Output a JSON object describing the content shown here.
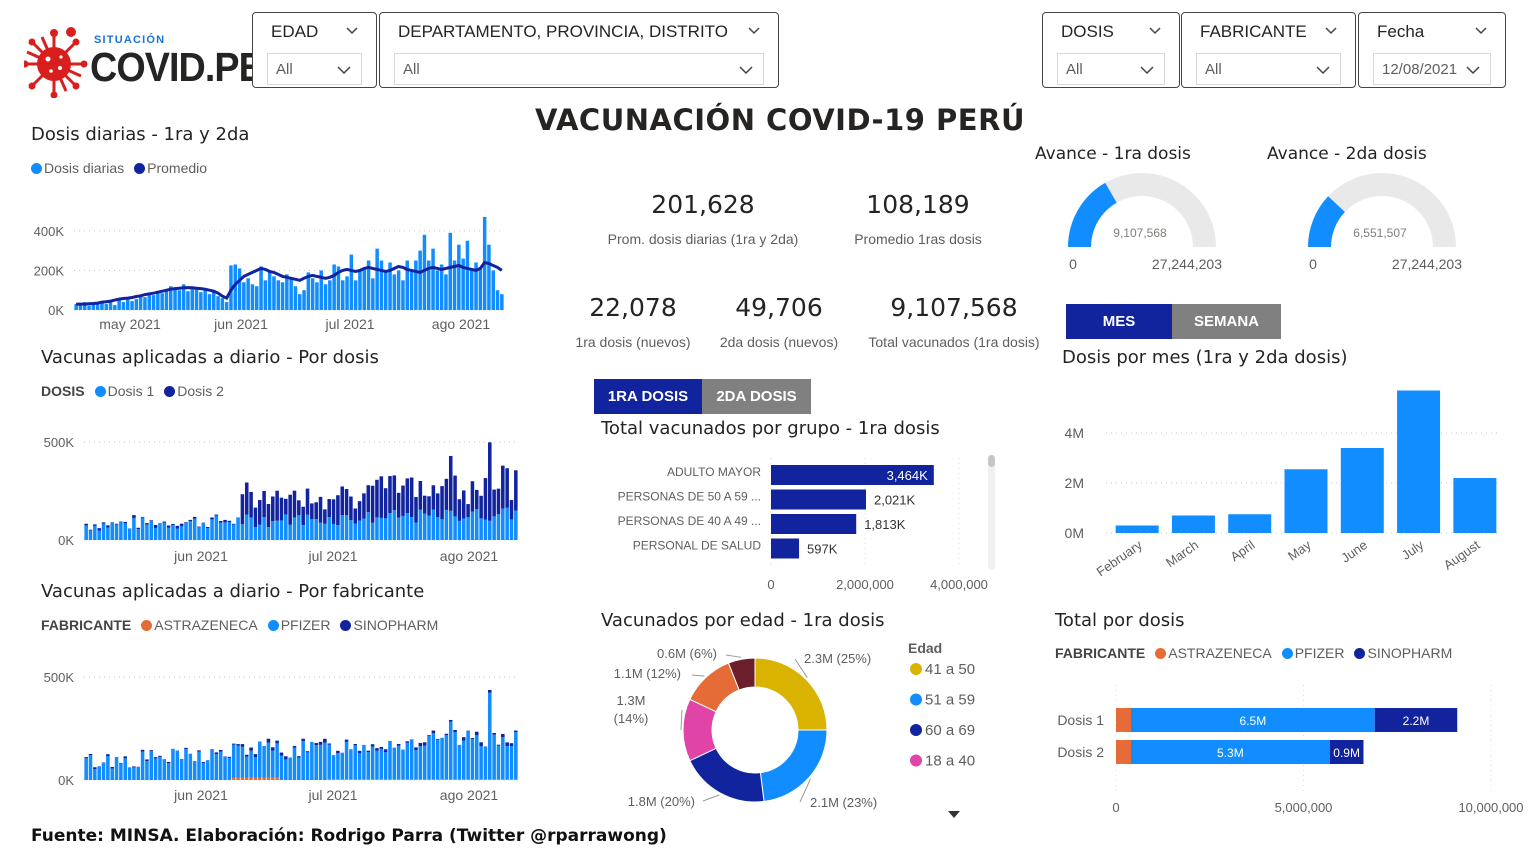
{
  "logo": {
    "subtitle": "SITUACIÓN",
    "name": "COVID.PE"
  },
  "slicers": {
    "edad": {
      "title": "EDAD",
      "value": "All"
    },
    "departamento": {
      "title": "DEPARTAMENTO, PROVINCIA, DISTRITO",
      "value": "All"
    },
    "dosis": {
      "title": "DOSIS",
      "value": "All"
    },
    "fabricante": {
      "title": "FABRICANTE",
      "value": "All"
    },
    "fecha": {
      "title": "Fecha",
      "value": "12/08/2021"
    }
  },
  "main_title": "VACUNACIÓN COVID-19 PERÚ",
  "kpis": {
    "prom_diarias": {
      "value": "201,628",
      "label": "Prom. dosis diarias (1ra y 2da)"
    },
    "prom_1ras": {
      "value": "108,189",
      "label": "Promedio 1ras dosis"
    },
    "primera_nuevos": {
      "value": "22,078",
      "label": "1ra dosis (nuevos)"
    },
    "segunda_nuevos": {
      "value": "49,706",
      "label": "2da dosis (nuevos)"
    },
    "total_vacunados": {
      "value": "9,107,568",
      "label": "Total vacunados (1ra dosis)"
    }
  },
  "toggles": {
    "mes": "MES",
    "semana": "SEMANA",
    "primera": "1RA DOSIS",
    "segunda": "2DA DOSIS"
  },
  "colors": {
    "light_blue": "#118DFF",
    "dark_blue": "#12239E",
    "orange": "#E66C37",
    "gold": "#D9B300",
    "magenta": "#E044A7",
    "maroon": "#6B007B",
    "gray": "#808080"
  },
  "footer": "Fuente: MINSA. Elaboración: Rodrigo Parra (Twitter @rparrawong)",
  "chart_data": [
    {
      "id": "dosis_diarias",
      "type": "bar",
      "title": "Dosis diarias - 1ra y 2da",
      "series_names": [
        "Dosis diarias",
        "Promedio"
      ],
      "y_ticks": [
        "400K",
        "200K",
        "0K"
      ],
      "x_ticks": [
        "may 2021",
        "jun 2021",
        "jul 2021",
        "ago 2021"
      ],
      "ylim": [
        0,
        480000
      ],
      "values": [
        30000,
        25000,
        40000,
        22000,
        35000,
        28000,
        45000,
        30000,
        38000,
        25000,
        50000,
        40000,
        60000,
        45000,
        55000,
        70000,
        65000,
        80000,
        75000,
        90000,
        85000,
        100000,
        120000,
        110000,
        100000,
        130000,
        95000,
        115000,
        110000,
        90000,
        100000,
        80000,
        95000,
        70000,
        60000,
        40000,
        225000,
        230000,
        210000,
        140000,
        160000,
        130000,
        120000,
        220000,
        150000,
        200000,
        170000,
        150000,
        140000,
        180000,
        160000,
        120000,
        80000,
        100000,
        190000,
        160000,
        140000,
        200000,
        130000,
        150000,
        230000,
        220000,
        150000,
        170000,
        280000,
        150000,
        200000,
        210000,
        250000,
        160000,
        310000,
        250000,
        200000,
        240000,
        180000,
        200000,
        150000,
        250000,
        200000,
        250000,
        300000,
        380000,
        250000,
        310000,
        200000,
        230000,
        180000,
        390000,
        250000,
        330000,
        260000,
        350000,
        210000,
        240000,
        210000,
        470000,
        330000,
        200000,
        100000,
        80000
      ],
      "avg": [
        30000,
        30000,
        30000,
        32000,
        33000,
        35000,
        40000,
        42000,
        45000,
        50000,
        55000,
        58000,
        60000,
        63000,
        68000,
        72000,
        78000,
        82000,
        85000,
        90000,
        95000,
        100000,
        105000,
        108000,
        110000,
        112000,
        113000,
        112000,
        110000,
        108000,
        105000,
        100000,
        95000,
        85000,
        70000,
        60000,
        100000,
        130000,
        150000,
        170000,
        180000,
        190000,
        200000,
        210000,
        205000,
        195000,
        190000,
        180000,
        170000,
        165000,
        160000,
        155000,
        150000,
        160000,
        170000,
        175000,
        170000,
        165000,
        160000,
        165000,
        175000,
        190000,
        200000,
        205000,
        200000,
        195000,
        200000,
        210000,
        215000,
        210000,
        205000,
        200000,
        195000,
        200000,
        210000,
        220000,
        215000,
        205000,
        200000,
        195000,
        190000,
        200000,
        210000,
        215000,
        210000,
        205000,
        210000,
        215000,
        220000,
        225000,
        215000,
        210000,
        205000,
        200000,
        210000,
        240000,
        235000,
        225000,
        215000,
        200000
      ]
    },
    {
      "id": "por_dosis",
      "type": "bar",
      "title": "Vacunas aplicadas a diario - Por dosis",
      "legend_label": "DOSIS",
      "series_names": [
        "Dosis 1",
        "Dosis 2"
      ],
      "y_ticks": [
        "500K",
        "0K"
      ],
      "x_ticks": [
        "jun 2021",
        "jul 2021",
        "ago 2021"
      ],
      "ylim": [
        0,
        520000
      ]
    },
    {
      "id": "por_fabricante",
      "type": "bar",
      "title": "Vacunas aplicadas a diario - Por fabricante",
      "legend_label": "FABRICANTE",
      "series_names": [
        "ASTRAZENECA",
        "PFIZER",
        "SINOPHARM"
      ],
      "y_ticks": [
        "500K",
        "0K"
      ],
      "x_ticks": [
        "jun 2021",
        "jul 2021",
        "ago 2021"
      ],
      "ylim": [
        0,
        520000
      ]
    },
    {
      "id": "gauge_1ra",
      "type": "gauge",
      "title": "Avance - 1ra dosis",
      "value": 9107568,
      "value_label": "9,107,568",
      "min_label": "0",
      "max": 27244203,
      "max_label": "27,244,203"
    },
    {
      "id": "gauge_2da",
      "type": "gauge",
      "title": "Avance - 2da dosis",
      "value": 6551507,
      "value_label": "6,551,507",
      "min_label": "0",
      "max": 27244203,
      "max_label": "27,244,203"
    },
    {
      "id": "por_grupo",
      "type": "bar",
      "orientation": "horizontal",
      "title": "Total vacunados por grupo - 1ra dosis",
      "categories": [
        "ADULTO MAYOR",
        "PERSONAS DE 50 A 59 ...",
        "PERSONAS DE 40 A 49 ...",
        "PERSONAL DE SALUD"
      ],
      "values": [
        3464000,
        2021000,
        1813000,
        597000
      ],
      "data_labels": [
        "3,464K",
        "2,021K",
        "1,813K",
        "597K"
      ],
      "x_ticks": [
        "0",
        "2,000,000",
        "4,000,000"
      ],
      "xlim": [
        0,
        4000000
      ]
    },
    {
      "id": "por_mes",
      "type": "bar",
      "title": "Dosis por mes (1ra y 2da dosis)",
      "categories": [
        "February",
        "March",
        "April",
        "May",
        "June",
        "July",
        "August"
      ],
      "values": [
        300000,
        700000,
        750000,
        2550000,
        3400000,
        5700000,
        2200000
      ],
      "y_ticks": [
        "4M",
        "2M",
        "0M"
      ],
      "ylim": [
        0,
        6000000
      ]
    },
    {
      "id": "por_edad",
      "type": "pie",
      "title": "Vacunados por edad - 1ra dosis",
      "legend_title": "Edad",
      "legend": [
        "41 a 50",
        "51 a 59",
        "60 a 69",
        "18 a 40"
      ],
      "slices": [
        {
          "value": 25,
          "label": "2.3M (25%)"
        },
        {
          "value": 23,
          "label": "2.1M (23%)"
        },
        {
          "value": 20,
          "label": "1.8M (20%)"
        },
        {
          "value": 14,
          "label_line1": "1.3M",
          "label_line2": "(14%)"
        },
        {
          "value": 12,
          "label": "1.1M (12%)"
        },
        {
          "value": 6,
          "label": "0.6M (6%)"
        }
      ]
    },
    {
      "id": "total_por_dosis",
      "type": "bar",
      "orientation": "horizontal",
      "stacked": true,
      "title": "Total por dosis",
      "legend_label": "FABRICANTE",
      "series_names": [
        "ASTRAZENECA",
        "PFIZER",
        "SINOPHARM"
      ],
      "categories": [
        "Dosis 1",
        "Dosis 2"
      ],
      "series": [
        {
          "name": "ASTRAZENECA",
          "values": [
            400000,
            400000
          ]
        },
        {
          "name": "PFIZER",
          "values": [
            6500000,
            5300000
          ],
          "labels": [
            "6.5M",
            "5.3M"
          ]
        },
        {
          "name": "SINOPHARM",
          "values": [
            2200000,
            900000
          ],
          "labels": [
            "2.2M",
            "0.9M"
          ]
        }
      ],
      "x_ticks": [
        "0",
        "5,000,000",
        "10,000,000"
      ],
      "xlim": [
        0,
        10000000
      ]
    }
  ]
}
